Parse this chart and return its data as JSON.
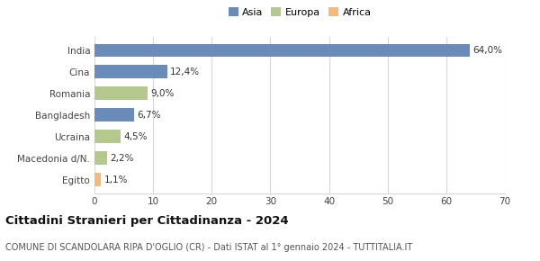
{
  "categories": [
    "India",
    "Cina",
    "Romania",
    "Bangladesh",
    "Ucraina",
    "Macedonia d/N.",
    "Egitto"
  ],
  "values": [
    64.0,
    12.4,
    9.0,
    6.7,
    4.5,
    2.2,
    1.1
  ],
  "labels": [
    "64,0%",
    "12,4%",
    "9,0%",
    "6,7%",
    "4,5%",
    "2,2%",
    "1,1%"
  ],
  "colors": [
    "#6b8cba",
    "#6b8cba",
    "#b5c98e",
    "#6b8cba",
    "#b5c98e",
    "#b5c98e",
    "#f5b97a"
  ],
  "legend_labels": [
    "Asia",
    "Europa",
    "Africa"
  ],
  "legend_colors": [
    "#6b8cba",
    "#b5c98e",
    "#f5b97a"
  ],
  "xlim": [
    0,
    70
  ],
  "xticks": [
    0,
    10,
    20,
    30,
    40,
    50,
    60,
    70
  ],
  "title": "Cittadini Stranieri per Cittadinanza - 2024",
  "subtitle": "COMUNE DI SCANDOLARA RIPA D'OGLIO (CR) - Dati ISTAT al 1° gennaio 2024 - TUTTITALIA.IT",
  "background_color": "#ffffff",
  "grid_color": "#d8d8d8",
  "bar_height": 0.6,
  "label_fontsize": 7.5,
  "tick_fontsize": 7.5,
  "title_fontsize": 9.5,
  "subtitle_fontsize": 7.0
}
